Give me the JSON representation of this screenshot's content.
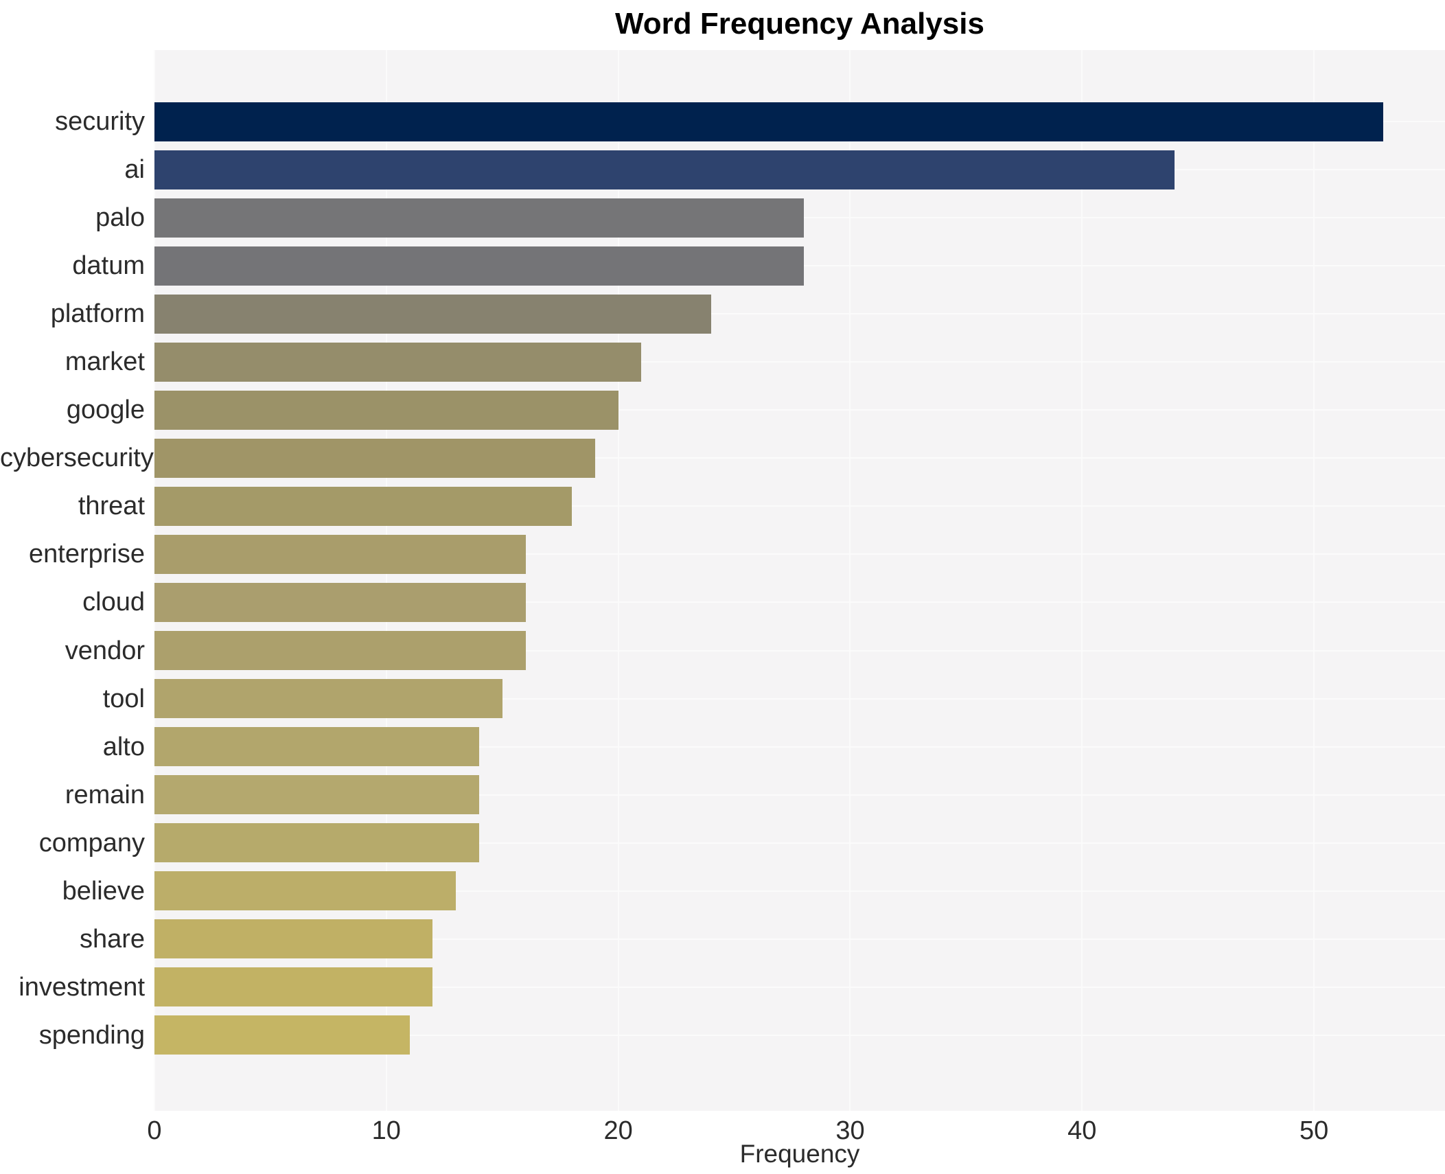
{
  "chart_data": {
    "type": "bar",
    "orientation": "horizontal",
    "title": "Word Frequency Analysis",
    "xlabel": "Frequency",
    "ylabel": "",
    "legend": "none",
    "grid": "white gridlines (x ticks and y category lines) on light gray panel",
    "xlim": [
      0,
      55.65
    ],
    "xticks": [
      0,
      10,
      20,
      30,
      40,
      50
    ],
    "categories": [
      "security",
      "ai",
      "palo",
      "datum",
      "platform",
      "market",
      "google",
      "cybersecurity",
      "threat",
      "enterprise",
      "cloud",
      "vendor",
      "tool",
      "alto",
      "remain",
      "company",
      "believe",
      "share",
      "investment",
      "spending"
    ],
    "values": [
      53,
      44,
      28,
      28,
      24,
      21,
      20,
      19,
      18,
      16,
      16,
      16,
      15,
      14,
      14,
      14,
      13,
      12,
      12,
      11
    ],
    "bar_colors": [
      "#00224e",
      "#2e436e",
      "#757577",
      "#747477",
      "#87826f",
      "#958d6b",
      "#9b9268",
      "#a09567",
      "#a49a68",
      "#a99d6b",
      "#aa9e6e",
      "#aca06c",
      "#b0a46c",
      "#b2a66c",
      "#b4a86e",
      "#b6aa6b",
      "#bcae69",
      "#c0b065",
      "#c2b264",
      "#c5b564"
    ]
  },
  "colors": {
    "figure_bg": "#ffffff",
    "panel_bg": "#f5f4f5",
    "gridline": "#fbfbfb",
    "title_text": "#000000",
    "axis_text": "#2b2b2b"
  }
}
